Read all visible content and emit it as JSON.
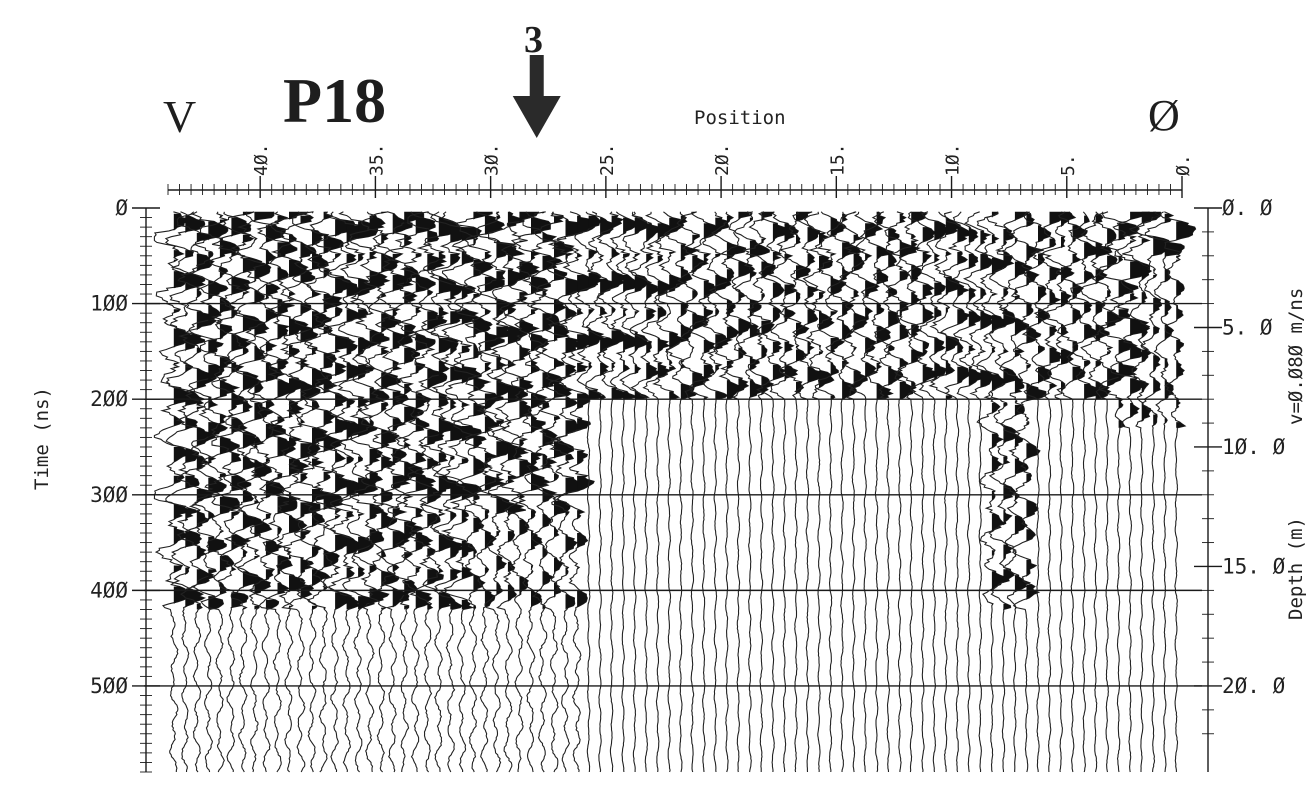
{
  "colors": {
    "paper": "#ffffff",
    "ink": "#1a1a1a",
    "trace": "#222222"
  },
  "annotations": {
    "left_mark": "V",
    "profile": "P18",
    "arrow_label": "3",
    "right_mark": "Ø"
  },
  "chart_data": {
    "type": "wiggle-trace radargram",
    "xlabel": "Position",
    "ylabel": "Time (ns)",
    "ylabel_right": "Depth (m)",
    "velocity_note": "v=Ø.Ø8Ø m/ns",
    "x_direction": "decreasing",
    "xlim": [
      44,
      0
    ],
    "ylim": [
      0,
      590
    ],
    "x_ticks": [
      {
        "value": 40,
        "label": "4Ø."
      },
      {
        "value": 35,
        "label": "35."
      },
      {
        "value": 30,
        "label": "3Ø."
      },
      {
        "value": 25,
        "label": "25."
      },
      {
        "value": 20,
        "label": "2Ø."
      },
      {
        "value": 15,
        "label": "15."
      },
      {
        "value": 10,
        "label": "1Ø."
      },
      {
        "value": 5,
        "label": "5."
      },
      {
        "value": 0,
        "label": "Ø."
      }
    ],
    "time_ticks": [
      {
        "value": 0,
        "label": "Ø"
      },
      {
        "value": 100,
        "label": "1ØØ"
      },
      {
        "value": 200,
        "label": "2ØØ"
      },
      {
        "value": 300,
        "label": "3ØØ"
      },
      {
        "value": 400,
        "label": "4ØØ"
      },
      {
        "value": 500,
        "label": "5ØØ"
      }
    ],
    "depth_ticks": [
      {
        "value": 0.0,
        "label": "Ø. Ø"
      },
      {
        "value": 5.0,
        "label": "5. Ø"
      },
      {
        "value": 10.0,
        "label": "1Ø. Ø"
      },
      {
        "value": 15.0,
        "label": "15. Ø"
      },
      {
        "value": 20.0,
        "label": "2Ø. Ø"
      }
    ],
    "velocity_m_per_ns": 0.08,
    "arrow_position": 28,
    "trace_spacing": 0.5,
    "grid_lines_time": [
      100,
      200,
      300,
      400,
      500
    ]
  }
}
